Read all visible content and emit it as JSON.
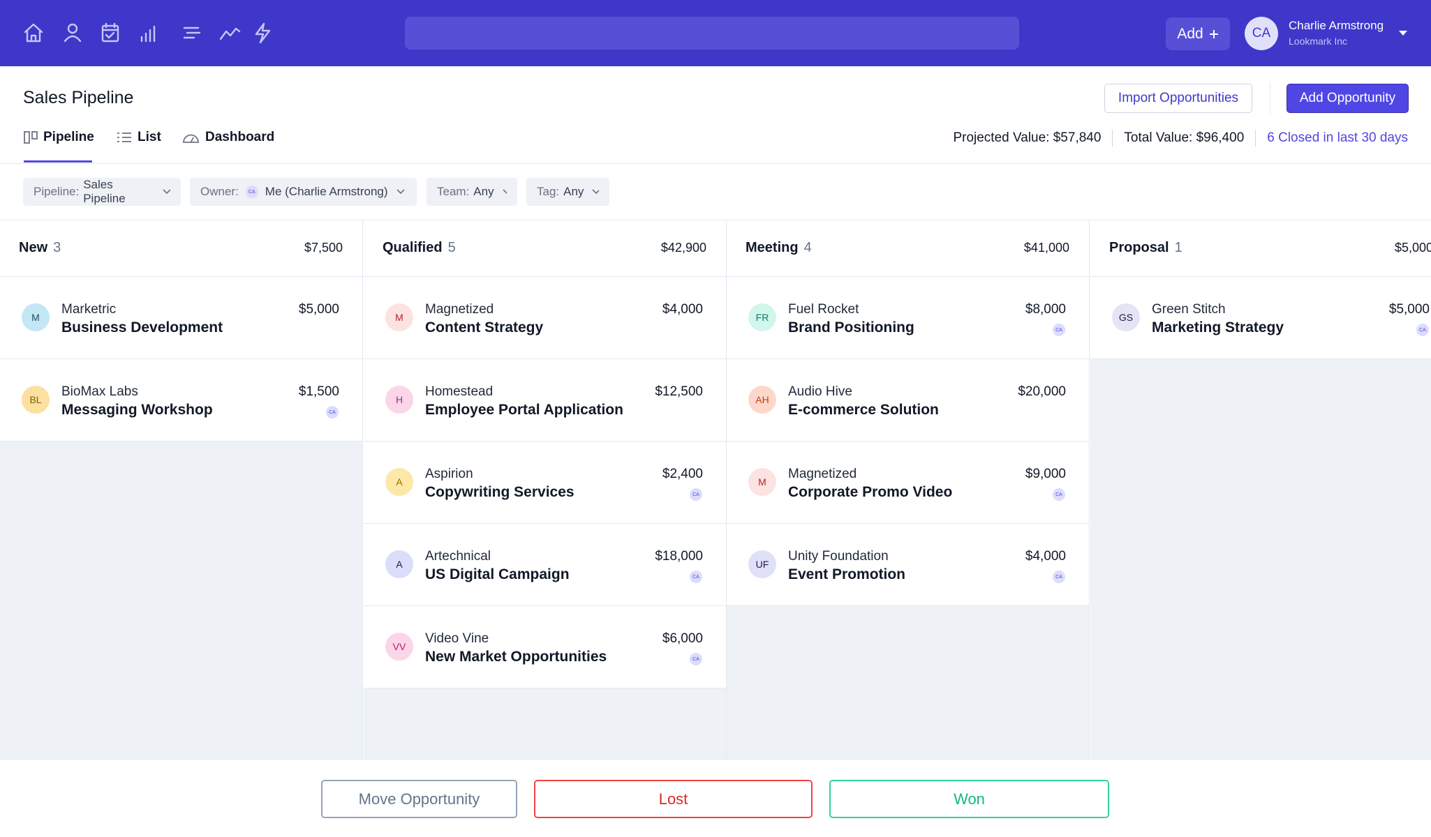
{
  "nav": {
    "add": "Add",
    "avatar": "CA",
    "user_name": "Charlie Armstrong",
    "user_company": "Lookmark Inc"
  },
  "header": {
    "title": "Sales Pipeline",
    "import": "Import Opportunities",
    "add": "Add Opportunity",
    "tabs": [
      "Pipeline",
      "List",
      "Dashboard"
    ],
    "projected": "Projected Value: $57,840",
    "total": "Total Value: $96,400",
    "closed": "6 Closed in last 30 days"
  },
  "filters": [
    {
      "label": "Pipeline:",
      "value": "Sales Pipeline"
    },
    {
      "label": "Owner:",
      "badge": "CA",
      "value": "Me (Charlie Armstrong)"
    },
    {
      "label": "Team:",
      "value": "Any"
    },
    {
      "label": "Tag:",
      "value": "Any"
    }
  ],
  "columns": [
    {
      "name": "New",
      "count": 3,
      "total": "$7,500",
      "cards": [
        {
          "initials": "M",
          "bg": "#c3e7f5",
          "fg": "#1e4a5f",
          "company": "Marketric",
          "title": "Business Development",
          "amount": "$5,000"
        },
        {
          "initials": "BL",
          "bg": "#fbe0a0",
          "fg": "#8a5a00",
          "company": "BioMax Labs",
          "title": "Messaging Workshop",
          "amount": "$1,500",
          "owner": "CA"
        }
      ]
    },
    {
      "name": "Qualified",
      "count": 5,
      "total": "$42,900",
      "cards": [
        {
          "initials": "M",
          "bg": "#fde2e2",
          "fg": "#b4232a",
          "company": "Magnetized",
          "title": "Content Strategy",
          "amount": "$4,000"
        },
        {
          "initials": "H",
          "bg": "#fbd5e8",
          "fg": "#b0236a",
          "company": "Homestead",
          "title": "Employee Portal Application",
          "amount": "$12,500"
        },
        {
          "initials": "A",
          "bg": "#fde8a8",
          "fg": "#9a6a00",
          "company": "Aspirion",
          "title": "Copywriting Services",
          "amount": "$2,400",
          "owner": "CA"
        },
        {
          "initials": "A",
          "bg": "#dcdcfb",
          "fg": "#1e1b4b",
          "company": "Artechnical",
          "title": "US Digital Campaign",
          "amount": "$18,000",
          "owner": "CA"
        },
        {
          "initials": "VV",
          "bg": "#fbd5ea",
          "fg": "#be185d",
          "company": "Video Vine",
          "title": "New Market Opportunities",
          "amount": "$6,000",
          "owner": "CA"
        }
      ]
    },
    {
      "name": "Meeting",
      "count": 4,
      "total": "$41,000",
      "cards": [
        {
          "initials": "FR",
          "bg": "#d1f7ec",
          "fg": "#0f766e",
          "company": "Fuel Rocket",
          "title": "Brand Positioning",
          "amount": "$8,000",
          "owner": "CA"
        },
        {
          "initials": "AH",
          "bg": "#fed7cc",
          "fg": "#c2410c",
          "company": "Audio Hive",
          "title": "E-commerce Solution",
          "amount": "$20,000"
        },
        {
          "initials": "M",
          "bg": "#fde2e2",
          "fg": "#b4232a",
          "company": "Magnetized",
          "title": "Corporate Promo Video",
          "amount": "$9,000",
          "owner": "CA"
        },
        {
          "initials": "UF",
          "bg": "#e0e0fb",
          "fg": "#1e1b4b",
          "company": "Unity Foundation",
          "title": "Event Promotion",
          "amount": "$4,000",
          "owner": "CA"
        }
      ]
    },
    {
      "name": "Proposal",
      "count": 1,
      "total": "$5,000",
      "cards": [
        {
          "initials": "GS",
          "bg": "#e4e4f5",
          "fg": "#1e1b4b",
          "company": "Green Stitch",
          "title": "Marketing Strategy",
          "amount": "$5,000",
          "owner": "CA"
        }
      ]
    }
  ],
  "footer": {
    "move": "Move Opportunity",
    "lost": "Lost",
    "won": "Won"
  }
}
